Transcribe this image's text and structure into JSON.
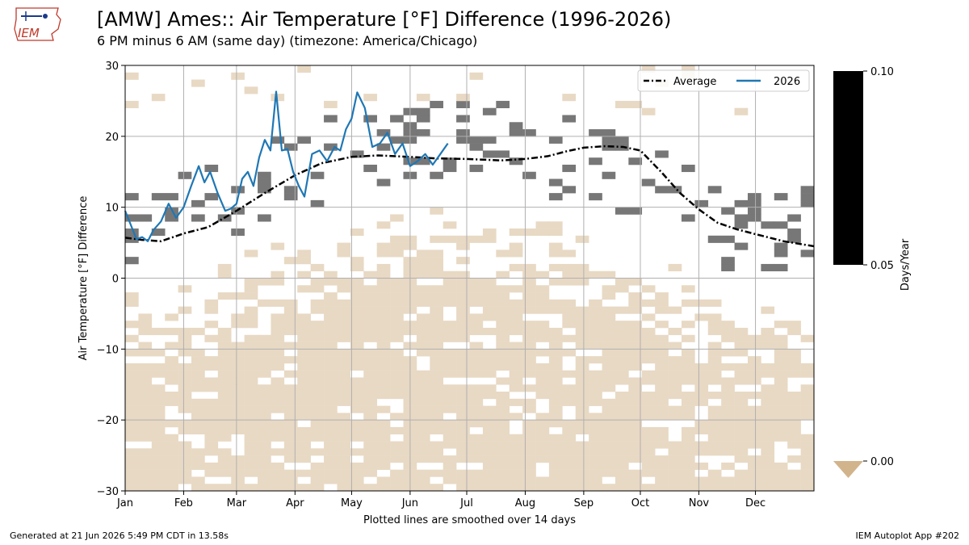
{
  "title": "[AMW] Ames:: Air Temperature [°F] Difference (1996-2026)",
  "subtitle": "6 PM minus 6 AM (same day) (timezone: America/Chicago)",
  "footer_left": "Generated at 21 Jun 2026 5:49 PM CDT in 13.58s",
  "footer_right": "IEM Autoplot App #202",
  "logo_text": "IEM",
  "colors": {
    "average": "#000000",
    "series_2026": "#1f77b4",
    "hist_positive": "#777777",
    "hist_zero": "#e8d9c4",
    "colorbar_under": "#d2b48c",
    "grid": "#b0b0b0"
  },
  "chart_data": {
    "type": "heatmap",
    "xlabel": "Plotted lines are smoothed over 14 days",
    "ylabel": "Air Temperature [°F] Difference",
    "ylim": [
      -30,
      30
    ],
    "yticks": [
      -30,
      -20,
      -10,
      0,
      10,
      20,
      30
    ],
    "xlim": [
      1,
      366
    ],
    "x_ticks": [
      {
        "label": "Jan",
        "doy": 1
      },
      {
        "label": "Feb",
        "doy": 32
      },
      {
        "label": "Mar",
        "doy": 60
      },
      {
        "label": "Apr",
        "doy": 91
      },
      {
        "label": "May",
        "doy": 121
      },
      {
        "label": "Jun",
        "doy": 152
      },
      {
        "label": "Jul",
        "doy": 182
      },
      {
        "label": "Aug",
        "doy": 213
      },
      {
        "label": "Sep",
        "doy": 244
      },
      {
        "label": "Oct",
        "doy": 274
      },
      {
        "label": "Nov",
        "doy": 305
      },
      {
        "label": "Dec",
        "doy": 335
      }
    ],
    "grid": true,
    "legend": {
      "placement": "top-right",
      "entries": [
        {
          "label": "Average",
          "style": "dashdot",
          "color": "#000000"
        },
        {
          "label": "2026",
          "style": "solid",
          "color": "#1f77b4"
        }
      ]
    },
    "colorbar": {
      "label": "Days/Year",
      "ticks": [
        "0.10",
        "0.05",
        "0.00"
      ],
      "tick_values": [
        0.1,
        0.05,
        0.0
      ]
    },
    "heatmap_note": "gray cells = non-zero frequency (~0.033 days/yr); tan cells = frequency at/below 0.00",
    "average_series": {
      "name": "Average",
      "x": [
        1,
        10,
        20,
        32,
        45,
        60,
        75,
        91,
        105,
        121,
        135,
        152,
        165,
        182,
        200,
        213,
        225,
        235,
        244,
        255,
        265,
        274,
        285,
        295,
        305,
        315,
        325,
        335,
        350,
        366
      ],
      "y": [
        5.7,
        5.4,
        5.2,
        6.3,
        7.2,
        9.5,
        12.0,
        14.5,
        16.2,
        17.1,
        17.3,
        17.1,
        16.9,
        16.8,
        16.6,
        16.8,
        17.2,
        17.9,
        18.4,
        18.6,
        18.5,
        18.0,
        15.0,
        12.0,
        9.7,
        7.8,
        6.9,
        6.2,
        5.2,
        4.5
      ]
    },
    "series_2026": {
      "name": "2026",
      "x": [
        1,
        4,
        7,
        10,
        13,
        16,
        20,
        24,
        28,
        32,
        36,
        40,
        43,
        46,
        50,
        54,
        57,
        60,
        63,
        66,
        69,
        72,
        75,
        78,
        81,
        84,
        87,
        90,
        93,
        96,
        100,
        104,
        108,
        112,
        115,
        118,
        121,
        124,
        128,
        132,
        136,
        140,
        144,
        148,
        152,
        156,
        160,
        164,
        168,
        172
      ],
      "y": [
        9.5,
        7.5,
        5.5,
        5.8,
        5.2,
        6.8,
        8.0,
        10.5,
        8.5,
        10.0,
        13.0,
        15.8,
        13.5,
        15.0,
        12.0,
        9.5,
        9.8,
        10.5,
        14.0,
        15.0,
        13.0,
        17.0,
        19.5,
        18.0,
        26.3,
        18.0,
        18.2,
        15.0,
        13.0,
        11.5,
        17.5,
        18.0,
        16.5,
        18.5,
        18.0,
        21.0,
        22.5,
        26.2,
        24.0,
        18.5,
        19.0,
        20.5,
        17.5,
        19.0,
        15.8,
        16.5,
        17.5,
        16.0,
        17.5,
        19.0
      ]
    }
  }
}
